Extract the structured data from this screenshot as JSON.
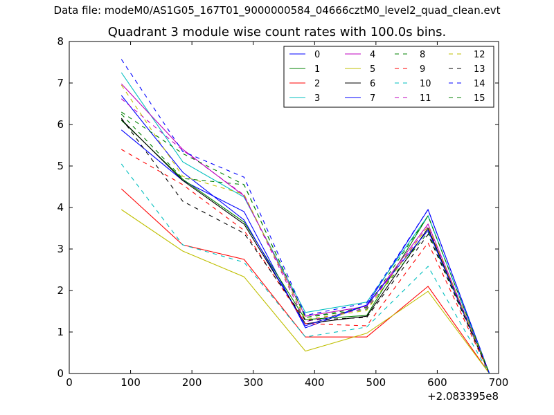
{
  "suptitle": "Data file: modeM0/AS1G05_167T01_9000000584_04666cztM0_level2_quad_clean.evt",
  "chart_data": {
    "type": "line",
    "title": "Quadrant 3 module wise count rates with 100.0s bins.",
    "xlabel": "",
    "ylabel": "",
    "x_offset_label": "+2.083395e8",
    "xlim": [
      0,
      700
    ],
    "ylim": [
      0,
      8
    ],
    "xticks": [
      "0",
      "100",
      "200",
      "300",
      "400",
      "500",
      "600",
      "700"
    ],
    "yticks": [
      "0",
      "1",
      "2",
      "3",
      "4",
      "5",
      "6",
      "7",
      "8"
    ],
    "grid": false,
    "legend_position": "top-right",
    "x": [
      85,
      185,
      285,
      385,
      485,
      585,
      685
    ],
    "series": [
      {
        "name": "0",
        "color": "#0000ff",
        "dash": "solid",
        "values": [
          5.87,
          4.65,
          3.9,
          1.1,
          1.65,
          3.95,
          0.0
        ]
      },
      {
        "name": "1",
        "color": "#008000",
        "dash": "solid",
        "values": [
          6.1,
          4.68,
          3.65,
          1.3,
          1.4,
          3.8,
          0.0
        ]
      },
      {
        "name": "2",
        "color": "#ff0000",
        "dash": "solid",
        "values": [
          4.45,
          3.1,
          2.75,
          0.88,
          0.88,
          2.1,
          0.0
        ]
      },
      {
        "name": "3",
        "color": "#00bfbf",
        "dash": "solid",
        "values": [
          7.25,
          5.1,
          4.25,
          1.47,
          1.72,
          3.8,
          0.0
        ]
      },
      {
        "name": "4",
        "color": "#bf00bf",
        "dash": "solid",
        "values": [
          6.98,
          5.4,
          4.28,
          1.38,
          1.62,
          3.6,
          0.0
        ]
      },
      {
        "name": "5",
        "color": "#bfbf00",
        "dash": "solid",
        "values": [
          3.95,
          2.95,
          2.33,
          0.54,
          0.97,
          1.98,
          0.0
        ]
      },
      {
        "name": "6",
        "color": "#000000",
        "dash": "solid",
        "values": [
          6.12,
          4.65,
          3.6,
          1.2,
          1.38,
          3.5,
          0.0
        ]
      },
      {
        "name": "7",
        "color": "#0000ff",
        "dash": "solid",
        "values": [
          6.7,
          4.85,
          3.7,
          1.15,
          1.65,
          3.45,
          0.0
        ]
      },
      {
        "name": "8",
        "color": "#008000",
        "dash": "dashed",
        "values": [
          6.25,
          4.7,
          4.55,
          1.35,
          1.55,
          3.4,
          0.0
        ]
      },
      {
        "name": "9",
        "color": "#ff0000",
        "dash": "dashed",
        "values": [
          5.4,
          4.55,
          3.45,
          1.2,
          1.15,
          3.15,
          0.0
        ]
      },
      {
        "name": "10",
        "color": "#00bfbf",
        "dash": "dashed",
        "values": [
          5.05,
          3.1,
          2.68,
          0.88,
          1.12,
          2.58,
          0.0
        ]
      },
      {
        "name": "11",
        "color": "#bf00bf",
        "dash": "dashed",
        "values": [
          6.62,
          5.38,
          4.3,
          1.25,
          1.58,
          3.55,
          0.0
        ]
      },
      {
        "name": "12",
        "color": "#bfbf00",
        "dash": "dashed",
        "values": [
          6.95,
          4.75,
          4.32,
          1.3,
          1.52,
          3.55,
          0.0
        ]
      },
      {
        "name": "13",
        "color": "#000000",
        "dash": "dashed",
        "values": [
          6.15,
          4.15,
          3.38,
          1.28,
          1.35,
          3.35,
          0.0
        ]
      },
      {
        "name": "14",
        "color": "#0000ff",
        "dash": "dashed",
        "values": [
          7.57,
          5.35,
          4.73,
          1.4,
          1.7,
          3.95,
          0.0
        ]
      },
      {
        "name": "15",
        "color": "#008000",
        "dash": "dashed",
        "values": [
          6.3,
          5.3,
          4.55,
          1.35,
          1.6,
          3.8,
          0.0
        ]
      }
    ]
  }
}
